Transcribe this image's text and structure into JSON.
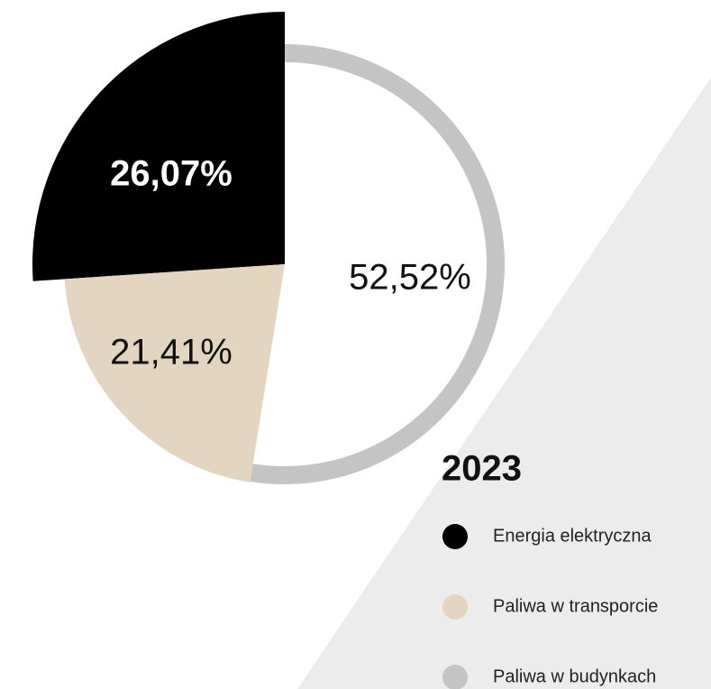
{
  "chart_data": {
    "type": "pie",
    "title": "2023",
    "categories": [
      "Energia elektryczna",
      "Paliwa w transporcie",
      "Paliwa w budynkach"
    ],
    "values": [
      26.07,
      21.41,
      52.52
    ],
    "value_labels": [
      "26,07%",
      "21,41%",
      "52,52%"
    ],
    "colors": [
      "#000000",
      "#e4d5c1",
      "#c4c4c4"
    ]
  }
}
